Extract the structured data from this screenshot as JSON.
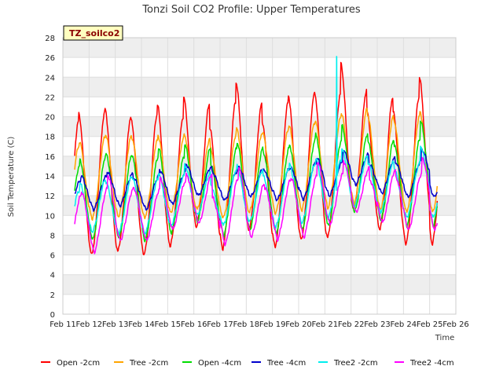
{
  "chart_data": {
    "type": "line",
    "title": "Tonzi Soil CO2 Profile: Upper Temperatures",
    "xlabel": "Time",
    "ylabel": "Soil Temperature (C)",
    "badge": "TZ_soilco2",
    "xlim": [
      11,
      26
    ],
    "ylim": [
      0,
      28
    ],
    "x_ticks": [
      11,
      12,
      13,
      14,
      15,
      16,
      17,
      18,
      19,
      20,
      21,
      22,
      23,
      24,
      25,
      26
    ],
    "x_tick_labels": [
      "Feb 11",
      "Feb 12",
      "Feb 13",
      "Feb 14",
      "Feb 15",
      "Feb 16",
      "Feb 17",
      "Feb 18",
      "Feb 19",
      "Feb 20",
      "Feb 21",
      "Feb 22",
      "Feb 23",
      "Feb 24",
      "Feb 25",
      "Feb 26"
    ],
    "y_ticks": [
      0,
      2,
      4,
      6,
      8,
      10,
      12,
      14,
      16,
      18,
      20,
      22,
      24,
      26,
      28
    ],
    "grid": true,
    "legend_position": "bottom",
    "days": [
      11.5,
      12.5,
      13.5,
      14.5,
      15.5,
      16.5,
      17.5,
      18.5,
      19.5,
      20.5,
      21.5,
      22.5,
      23.5,
      24.5
    ],
    "series": [
      {
        "name": "Open -2cm",
        "color": "#ff0000",
        "phase": 0.6,
        "sharp": 3.0,
        "min": [
          4.2,
          5.0,
          5.4,
          5.0,
          6.0,
          8.0,
          5.6,
          7.6,
          5.8,
          6.5,
          6.7,
          9.8,
          7.6,
          6.1
        ],
        "max": [
          19.5,
          20.4,
          20.0,
          20.2,
          20.0,
          21.3,
          21.5,
          21.3,
          21.4,
          22.2,
          22.3,
          22.7,
          22.0,
          22.0
        ],
        "end": 8.1
      },
      {
        "name": "Tree -2cm",
        "color": "#ffa500",
        "phase": 0.62,
        "sharp": 2.5,
        "min": [
          8.5,
          9.0,
          9.2,
          9.1,
          9.6,
          10.0,
          9.0,
          9.6,
          9.5,
          9.8,
          10.0,
          10.4,
          9.8,
          9.5
        ],
        "max": [
          17.0,
          18.0,
          18.0,
          17.6,
          17.8,
          17.8,
          18.2,
          18.4,
          18.8,
          19.4,
          20.0,
          20.8,
          20.0,
          20.0
        ],
        "end": 10.0
      },
      {
        "name": "Open -4cm",
        "color": "#00dd00",
        "phase": 0.64,
        "sharp": 2.0,
        "min": [
          6.0,
          6.6,
          6.8,
          6.5,
          7.4,
          8.6,
          7.0,
          7.6,
          7.2,
          7.5,
          8.0,
          9.5,
          8.6,
          8.0
        ],
        "max": [
          15.0,
          16.0,
          16.2,
          15.9,
          16.0,
          16.8,
          16.8,
          16.8,
          16.8,
          17.7,
          17.6,
          18.3,
          17.7,
          17.8
        ],
        "end": 9.8
      },
      {
        "name": "Tree -4cm",
        "color": "#0000cc",
        "phase": 0.68,
        "sharp": 1.4,
        "min": [
          9.5,
          10.0,
          10.4,
          10.0,
          10.6,
          11.5,
          11.0,
          11.4,
          11.0,
          11.0,
          11.4,
          12.6,
          11.6,
          11.2
        ],
        "max": [
          13.5,
          14.0,
          14.2,
          14.0,
          14.3,
          14.9,
          14.5,
          14.8,
          14.8,
          15.4,
          15.4,
          16.2,
          15.8,
          15.5
        ],
        "end": 12.4
      },
      {
        "name": "Tree2 -2cm",
        "color": "#00eeee",
        "phase": 0.63,
        "sharp": 2.0,
        "min": [
          7.0,
          7.8,
          7.6,
          7.6,
          8.4,
          9.6,
          8.4,
          8.8,
          8.2,
          8.6,
          9.2,
          10.4,
          9.8,
          9.2
        ],
        "max": [
          12.5,
          13.6,
          13.9,
          13.6,
          14.0,
          14.3,
          14.6,
          14.6,
          14.8,
          15.2,
          15.6,
          16.0,
          15.4,
          15.3
        ],
        "end": 11.0,
        "spike": {
          "x": 21.45,
          "y": 26.1
        }
      },
      {
        "name": "Tree2 -4cm",
        "color": "#ff00ff",
        "phase": 0.7,
        "sharp": 1.5,
        "min": [
          4.8,
          5.2,
          6.6,
          6.6,
          7.8,
          8.4,
          6.0,
          7.0,
          6.6,
          6.8,
          8.3,
          9.6,
          8.4,
          7.6
        ],
        "max": [
          12.0,
          12.7,
          12.7,
          12.6,
          13.5,
          14.2,
          13.8,
          13.2,
          13.6,
          14.0,
          14.2,
          14.8,
          14.6,
          14.2
        ],
        "end": 9.2
      }
    ]
  }
}
